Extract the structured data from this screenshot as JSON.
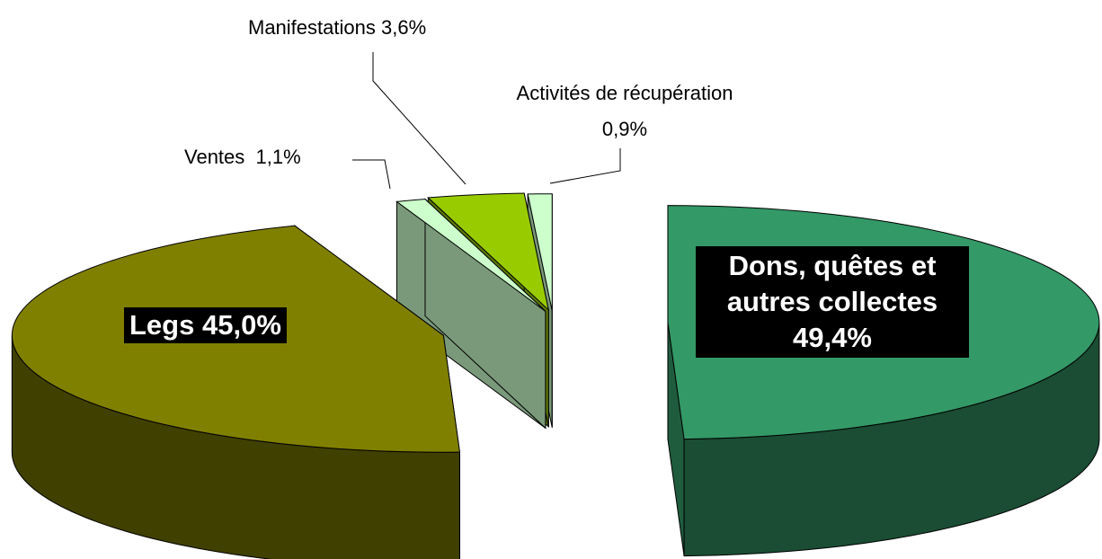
{
  "chart_data": {
    "type": "pie3d",
    "categories": [
      "Dons, quêtes et autres collectes",
      "Legs",
      "Ventes",
      "Manifestations",
      "Activités de récupération"
    ],
    "values": [
      49.4,
      45.0,
      1.1,
      3.6,
      0.9
    ],
    "value_labels": [
      "49,4%",
      "45,0%",
      "1,1%",
      "3,6%",
      "0,9%"
    ],
    "colors": [
      "#339966",
      "#808000",
      "#ccffcc",
      "#99cc00",
      "#ccffcc"
    ]
  }
}
